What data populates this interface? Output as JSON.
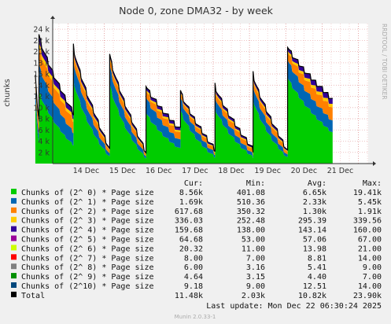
{
  "chart_data": {
    "type": "area",
    "title": "Node 0, zone DMA32 - by week",
    "ylabel": "chunks",
    "side_label": "RRDTOOL / TOBI OETIKER",
    "ylim": [
      0,
      25000
    ],
    "y_ticks": [
      2000,
      4000,
      6000,
      8000,
      10000,
      12000,
      14000,
      16000,
      18000,
      20000,
      22000,
      24000
    ],
    "y_tick_labels": [
      "2 k",
      "4 k",
      "6 k",
      "8 k",
      "10 k",
      "12 k",
      "14 k",
      "16 k",
      "18 k",
      "20 k",
      "22 k",
      "24 k"
    ],
    "x_range": [
      "2025-12-13 14:00",
      "2025-12-22 06:30"
    ],
    "x_ticks": [
      "14 Dec",
      "15 Dec",
      "16 Dec",
      "17 Dec",
      "18 Dec",
      "19 Dec",
      "20 Dec",
      "21 Dec"
    ],
    "grid": true,
    "legend_headers": [
      "Cur:",
      "Min:",
      "Avg:",
      "Max:"
    ],
    "series": [
      {
        "name": "Chunks of (2^ 0) * Page size",
        "color": "#00cc00",
        "cur": "8.56k",
        "min": "401.08",
        "avg": "6.65k",
        "max": "19.41k"
      },
      {
        "name": "Chunks of (2^ 1) * Page size",
        "color": "#0066b3",
        "cur": "1.69k",
        "min": "510.36",
        "avg": "2.33k",
        "max": "5.45k"
      },
      {
        "name": "Chunks of (2^ 2) * Page size",
        "color": "#ff8000",
        "cur": "617.68",
        "min": "350.32",
        "avg": "1.30k",
        "max": "1.91k"
      },
      {
        "name": "Chunks of (2^ 3) * Page size",
        "color": "#ffcc00",
        "cur": "336.03",
        "min": "252.48",
        "avg": "295.39",
        "max": "339.56"
      },
      {
        "name": "Chunks of (2^ 4) * Page size",
        "color": "#330099",
        "cur": "159.68",
        "min": "138.00",
        "avg": "143.14",
        "max": "160.00"
      },
      {
        "name": "Chunks of (2^ 5) * Page size",
        "color": "#990099",
        "cur": "64.68",
        "min": "53.00",
        "avg": "57.06",
        "max": "67.00"
      },
      {
        "name": "Chunks of (2^ 6) * Page size",
        "color": "#ccff00",
        "cur": "20.32",
        "min": "11.00",
        "avg": "13.98",
        "max": "21.00"
      },
      {
        "name": "Chunks of (2^ 7) * Page size",
        "color": "#ff0000",
        "cur": "8.00",
        "min": "7.00",
        "avg": "8.81",
        "max": "14.00"
      },
      {
        "name": "Chunks of (2^ 8) * Page size",
        "color": "#808080",
        "cur": "6.00",
        "min": "3.16",
        "avg": "5.41",
        "max": "9.00"
      },
      {
        "name": "Chunks of (2^ 9) * Page size",
        "color": "#008f00",
        "cur": "4.64",
        "min": "3.15",
        "avg": "4.40",
        "max": "7.00"
      },
      {
        "name": "Chunks of (2^10) * Page size",
        "color": "#00487d",
        "cur": "9.18",
        "min": "9.00",
        "avg": "12.51",
        "max": "14.00"
      }
    ],
    "total": {
      "name": "Total",
      "color": "#000000",
      "cur": "11.48k",
      "min": "2.03k",
      "avg": "10.82k",
      "max": "23.90k"
    },
    "cycles": [
      {
        "start_day": 13.1,
        "end_day": 13.2,
        "total_start": 15500,
        "total_end": 8000,
        "order0_start": 11000,
        "order1_start": 2500
      },
      {
        "start_day": 13.2,
        "end_day": 14.15,
        "total_start": 23000,
        "total_end": 9000,
        "order0_start": 13000,
        "order1_start": 4800
      },
      {
        "start_day": 14.15,
        "end_day": 15.15,
        "total_start": 21000,
        "total_end": 2500,
        "order0_start": 15000,
        "order1_start": 3600
      },
      {
        "start_day": 15.15,
        "end_day": 16.15,
        "total_start": 19500,
        "total_end": 2000,
        "order0_start": 14200,
        "order1_start": 3400
      },
      {
        "start_day": 16.15,
        "end_day": 17.1,
        "total_start": 14000,
        "total_end": 6000,
        "order0_start": 9200,
        "order1_start": 2800
      },
      {
        "start_day": 17.1,
        "end_day": 18.05,
        "total_start": 13000,
        "total_end": 2500,
        "order0_start": 9500,
        "order1_start": 2300
      },
      {
        "start_day": 18.05,
        "end_day": 19.1,
        "total_start": 14000,
        "total_end": 2500,
        "order0_start": 10000,
        "order1_start": 2200
      },
      {
        "start_day": 19.1,
        "end_day": 20.05,
        "total_start": 16000,
        "total_end": 2300,
        "order0_start": 11500,
        "order1_start": 2600
      },
      {
        "start_day": 20.05,
        "end_day": 21.29,
        "total_start": 21000,
        "total_end": 11480,
        "order0_start": 15500,
        "order1_start": 3200
      }
    ]
  },
  "footer": {
    "last_update": "Last update:  Mon Dec 22 06:30:24 2025",
    "munin": "Munin 2.0.33-1"
  }
}
